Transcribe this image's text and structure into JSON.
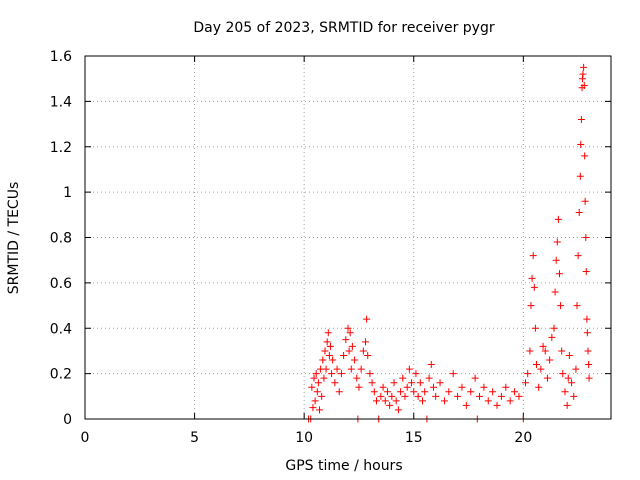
{
  "chart_data": {
    "type": "scatter",
    "title": "Day 205 of 2023, SRMTID for receiver pygr",
    "xlabel": "GPS time / hours",
    "ylabel": "SRMTID / TECUs",
    "xlim": [
      0,
      24
    ],
    "ylim": [
      0,
      1.6
    ],
    "xticks": [
      0,
      5,
      10,
      15,
      20
    ],
    "xtick_labels": [
      "0",
      "5",
      "10",
      "15",
      "20"
    ],
    "yticks": [
      0,
      0.2,
      0.4,
      0.6,
      0.8,
      1,
      1.2,
      1.4,
      1.6
    ],
    "ytick_labels": [
      "0",
      "0.2",
      "0.4",
      "0.6",
      "0.8",
      "1",
      "1.2",
      "1.4",
      "1.6"
    ],
    "grid": true,
    "marker": "plus",
    "color": "#ff0000",
    "series": [
      {
        "name": "SRMTID",
        "points": [
          [
            10.2,
            0.0
          ],
          [
            10.3,
            0.0
          ],
          [
            10.35,
            0.14
          ],
          [
            10.4,
            0.05
          ],
          [
            10.45,
            0.18
          ],
          [
            10.5,
            0.08
          ],
          [
            10.55,
            0.2
          ],
          [
            10.6,
            0.12
          ],
          [
            10.65,
            0.16
          ],
          [
            10.7,
            0.04
          ],
          [
            10.75,
            0.22
          ],
          [
            10.8,
            0.1
          ],
          [
            10.85,
            0.26
          ],
          [
            10.9,
            0.18
          ],
          [
            10.95,
            0.3
          ],
          [
            11.0,
            0.22
          ],
          [
            11.05,
            0.34
          ],
          [
            11.1,
            0.38
          ],
          [
            11.15,
            0.28
          ],
          [
            11.2,
            0.32
          ],
          [
            11.25,
            0.2
          ],
          [
            11.3,
            0.26
          ],
          [
            11.4,
            0.16
          ],
          [
            11.5,
            0.22
          ],
          [
            11.6,
            0.12
          ],
          [
            11.7,
            0.2
          ],
          [
            11.8,
            0.28
          ],
          [
            11.9,
            0.35
          ],
          [
            12.0,
            0.4
          ],
          [
            12.05,
            0.3
          ],
          [
            12.1,
            0.38
          ],
          [
            12.15,
            0.22
          ],
          [
            12.2,
            0.32
          ],
          [
            12.3,
            0.26
          ],
          [
            12.4,
            0.18
          ],
          [
            12.45,
            0.0
          ],
          [
            12.5,
            0.14
          ],
          [
            12.6,
            0.22
          ],
          [
            12.7,
            0.3
          ],
          [
            12.8,
            0.34
          ],
          [
            12.85,
            0.44
          ],
          [
            12.9,
            0.28
          ],
          [
            13.0,
            0.2
          ],
          [
            13.1,
            0.16
          ],
          [
            13.2,
            0.12
          ],
          [
            13.3,
            0.08
          ],
          [
            13.4,
            0.0
          ],
          [
            13.5,
            0.1
          ],
          [
            13.6,
            0.14
          ],
          [
            13.7,
            0.08
          ],
          [
            13.8,
            0.12
          ],
          [
            13.9,
            0.06
          ],
          [
            14.0,
            0.1
          ],
          [
            14.1,
            0.16
          ],
          [
            14.2,
            0.08
          ],
          [
            14.3,
            0.04
          ],
          [
            14.4,
            0.12
          ],
          [
            14.5,
            0.18
          ],
          [
            14.6,
            0.1
          ],
          [
            14.7,
            0.14
          ],
          [
            14.8,
            0.22
          ],
          [
            14.9,
            0.16
          ],
          [
            15.0,
            0.12
          ],
          [
            15.1,
            0.2
          ],
          [
            15.2,
            0.1
          ],
          [
            15.3,
            0.16
          ],
          [
            15.4,
            0.08
          ],
          [
            15.5,
            0.12
          ],
          [
            15.6,
            0.0
          ],
          [
            15.7,
            0.18
          ],
          [
            15.8,
            0.24
          ],
          [
            15.9,
            0.14
          ],
          [
            16.0,
            0.1
          ],
          [
            16.2,
            0.16
          ],
          [
            16.4,
            0.08
          ],
          [
            16.6,
            0.12
          ],
          [
            16.8,
            0.2
          ],
          [
            17.0,
            0.1
          ],
          [
            17.2,
            0.14
          ],
          [
            17.4,
            0.06
          ],
          [
            17.6,
            0.12
          ],
          [
            17.8,
            0.18
          ],
          [
            17.9,
            0.0
          ],
          [
            18.0,
            0.1
          ],
          [
            18.2,
            0.14
          ],
          [
            18.4,
            0.08
          ],
          [
            18.6,
            0.12
          ],
          [
            18.8,
            0.06
          ],
          [
            19.0,
            0.1
          ],
          [
            19.2,
            0.14
          ],
          [
            19.4,
            0.08
          ],
          [
            19.6,
            0.12
          ],
          [
            19.8,
            0.1
          ],
          [
            20.0,
            0.0
          ],
          [
            20.1,
            0.16
          ],
          [
            20.2,
            0.2
          ],
          [
            20.3,
            0.3
          ],
          [
            20.35,
            0.5
          ],
          [
            20.4,
            0.62
          ],
          [
            20.45,
            0.72
          ],
          [
            20.5,
            0.58
          ],
          [
            20.55,
            0.4
          ],
          [
            20.6,
            0.24
          ],
          [
            20.7,
            0.14
          ],
          [
            20.8,
            0.22
          ],
          [
            20.9,
            0.32
          ],
          [
            21.0,
            0.3
          ],
          [
            21.1,
            0.18
          ],
          [
            21.2,
            0.26
          ],
          [
            21.3,
            0.36
          ],
          [
            21.4,
            0.4
          ],
          [
            21.45,
            0.56
          ],
          [
            21.5,
            0.7
          ],
          [
            21.55,
            0.78
          ],
          [
            21.6,
            0.88
          ],
          [
            21.65,
            0.64
          ],
          [
            21.7,
            0.5
          ],
          [
            21.75,
            0.3
          ],
          [
            21.8,
            0.2
          ],
          [
            21.9,
            0.12
          ],
          [
            22.0,
            0.06
          ],
          [
            22.05,
            0.18
          ],
          [
            22.1,
            0.28
          ],
          [
            22.2,
            0.16
          ],
          [
            22.3,
            0.1
          ],
          [
            22.4,
            0.22
          ],
          [
            22.45,
            0.5
          ],
          [
            22.5,
            0.72
          ],
          [
            22.55,
            0.91
          ],
          [
            22.6,
            1.07
          ],
          [
            22.62,
            1.21
          ],
          [
            22.65,
            1.32
          ],
          [
            22.68,
            1.46
          ],
          [
            22.7,
            1.5
          ],
          [
            22.72,
            1.52
          ],
          [
            22.75,
            1.55
          ],
          [
            22.78,
            1.47
          ],
          [
            22.8,
            1.16
          ],
          [
            22.82,
            0.96
          ],
          [
            22.85,
            0.8
          ],
          [
            22.87,
            0.65
          ],
          [
            22.9,
            0.44
          ],
          [
            22.92,
            0.38
          ],
          [
            22.95,
            0.3
          ],
          [
            22.98,
            0.24
          ],
          [
            23.0,
            0.18
          ]
        ]
      }
    ]
  }
}
